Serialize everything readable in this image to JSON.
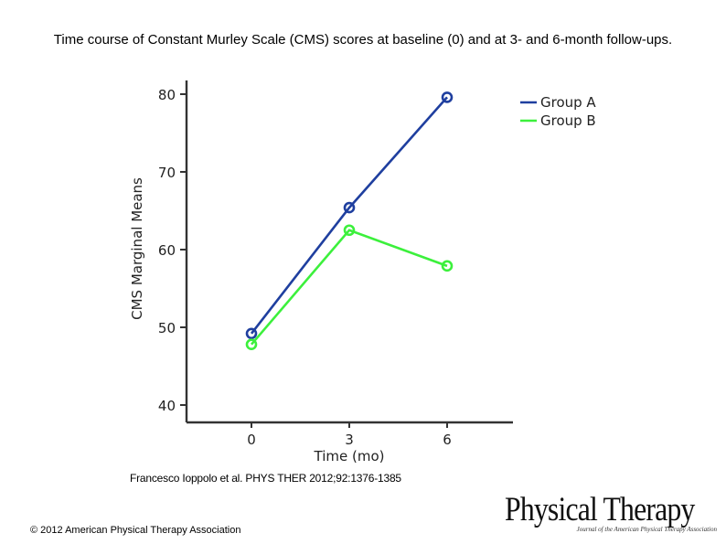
{
  "slide": {
    "title": "Time course of Constant Murley Scale (CMS) scores at baseline (0) and at 3- and 6-month follow-ups.",
    "citation": "Francesco Ioppolo et al. PHYS THER 2012;92:1376-1385",
    "copyright": "© 2012 American Physical Therapy Association"
  },
  "logo": {
    "main": "Physical Therapy",
    "sub": "Journal of the American Physical Therapy Association"
  },
  "chart_data": {
    "type": "line",
    "xlabel": "Time (mo)",
    "ylabel": "CMS Marginal Means",
    "categories": [
      "0",
      "3",
      "6"
    ],
    "ylim": [
      40,
      80
    ],
    "yticks": [
      40,
      50,
      60,
      70,
      80
    ],
    "legend_position": "top-right",
    "grid": false,
    "markers": "open-circle",
    "series": [
      {
        "name": "Group A",
        "color": "#1f3f9f",
        "values": [
          49.2,
          65.4,
          79.6
        ]
      },
      {
        "name": "Group B",
        "color": "#3cf03c",
        "values": [
          47.8,
          62.5,
          57.9
        ]
      }
    ]
  }
}
